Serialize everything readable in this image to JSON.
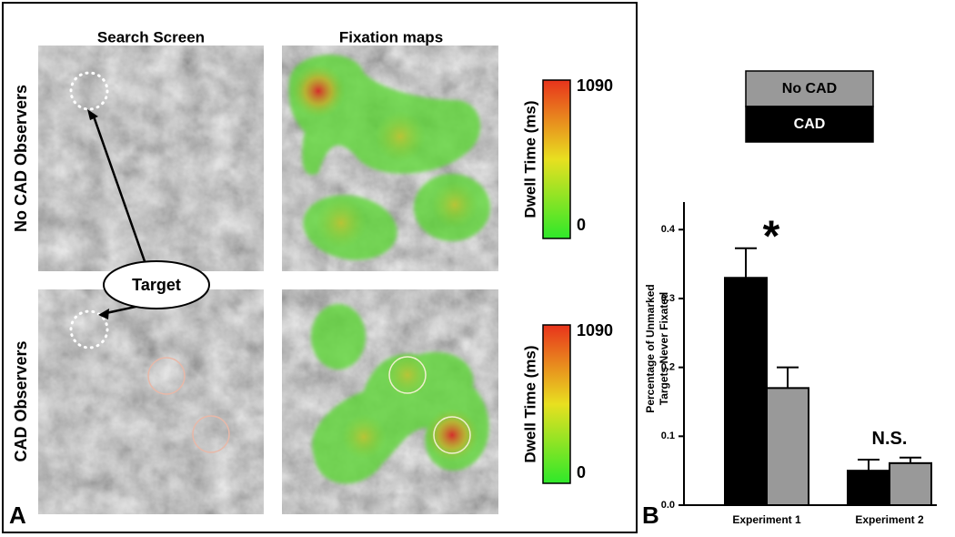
{
  "panel_a": {
    "letter": "A",
    "columns": [
      "Search Screen",
      "Fixation maps"
    ],
    "rows": [
      "No CAD Observers",
      "CAD Observers"
    ],
    "callout": "Target",
    "colorbars": [
      {
        "label": "Dwell Time (ms)",
        "max": 1090,
        "min": 0
      },
      {
        "label": "Dwell Time (ms)",
        "max": 1090,
        "min": 0
      }
    ]
  },
  "chart_data": {
    "type": "bar",
    "letter": "B",
    "ylabel": [
      "Percentage of Unmarked",
      "Targets Never Fixated"
    ],
    "categories": [
      "Experiment 1",
      "Experiment 2"
    ],
    "series": [
      {
        "name": "CAD",
        "color": "#000000",
        "values": [
          0.33,
          0.05
        ],
        "errors": [
          0.043,
          0.016
        ]
      },
      {
        "name": "No CAD",
        "color": "#999999",
        "values": [
          0.17,
          0.061
        ],
        "errors": [
          0.03,
          0.008
        ]
      }
    ],
    "annotations": [
      "*",
      "N.S."
    ],
    "ylim": [
      0,
      0.44
    ],
    "yticks": [
      {
        "value": 0,
        "label": "0.0"
      },
      0.1,
      0.2,
      0.3,
      0.4
    ]
  }
}
